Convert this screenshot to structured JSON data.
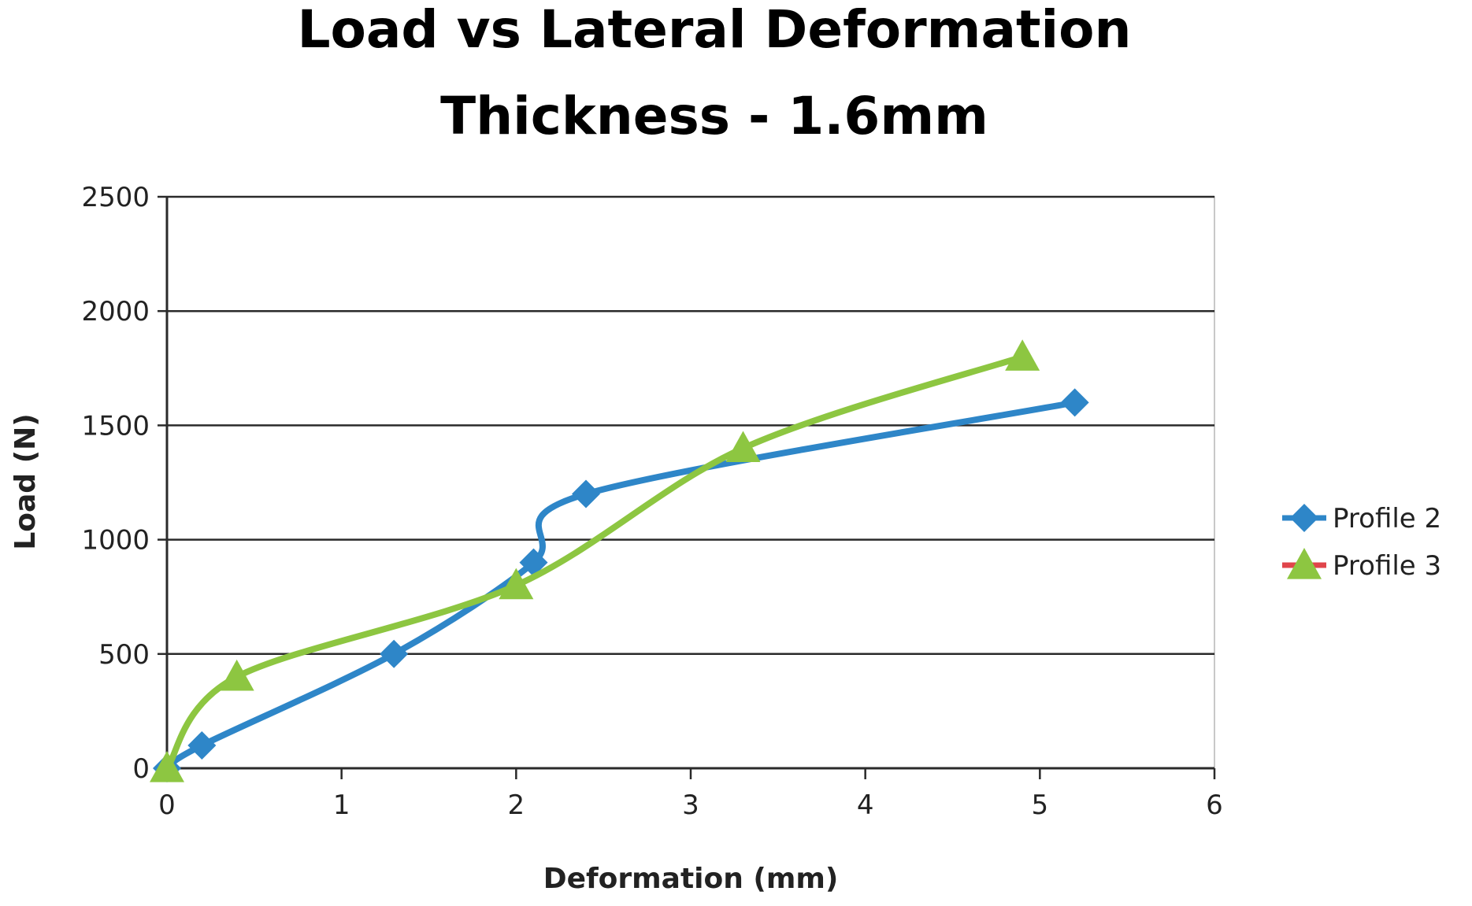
{
  "chart_data": {
    "type": "line",
    "title": "Load vs Lateral Deformation",
    "subtitle": "Thickness - 1.6mm",
    "xlabel": "Deformation (mm)",
    "ylabel": "Load (N)",
    "xlim": [
      0,
      6
    ],
    "ylim": [
      0,
      2500
    ],
    "xticks": [
      0,
      1,
      2,
      3,
      4,
      5,
      6
    ],
    "yticks": [
      0,
      500,
      1000,
      1500,
      2000,
      2500
    ],
    "grid": "horizontal",
    "legend_position": "right",
    "series": [
      {
        "name": "Profile 2",
        "color": "#2e86c8",
        "marker": "diamond",
        "points": [
          {
            "x": 0,
            "y": 0
          },
          {
            "x": 0.2,
            "y": 100
          },
          {
            "x": 1.3,
            "y": 500
          },
          {
            "x": 2.1,
            "y": 900
          },
          {
            "x": 2.4,
            "y": 1200
          },
          {
            "x": 5.2,
            "y": 1600
          }
        ]
      },
      {
        "name": "Profile 3",
        "color": "#8dc641",
        "legend_line_color": "#e0454b",
        "marker": "triangle",
        "points": [
          {
            "x": 0,
            "y": 0
          },
          {
            "x": 0.4,
            "y": 400
          },
          {
            "x": 2.0,
            "y": 800
          },
          {
            "x": 3.3,
            "y": 1400
          },
          {
            "x": 4.9,
            "y": 1800
          }
        ]
      }
    ]
  }
}
